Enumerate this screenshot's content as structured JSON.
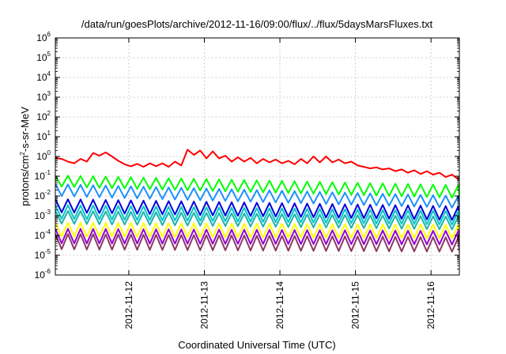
{
  "chart_data": {
    "type": "line",
    "title": "/data/run/goesPlots/archive/2012-11-16/09:00/flux/../flux/5daysMarsFluxes.txt",
    "xlabel": "Coordinated Universal Time (UTC)",
    "ylabel": {
      "base": "protons/cm",
      "sup": "2",
      "rest": "-s-sr-MeV"
    },
    "yscale": "log",
    "ylim_exponents": [
      -6,
      6
    ],
    "y_ticks": [
      {
        "base": "10",
        "exp": "-6"
      },
      {
        "base": "10",
        "exp": "-5"
      },
      {
        "base": "10",
        "exp": "-4"
      },
      {
        "base": "10",
        "exp": "-3"
      },
      {
        "base": "10",
        "exp": "-2"
      },
      {
        "base": "10",
        "exp": "-1"
      },
      {
        "base": "10",
        "exp": "0"
      },
      {
        "base": "10",
        "exp": "1"
      },
      {
        "base": "10",
        "exp": "2"
      },
      {
        "base": "10",
        "exp": "3"
      },
      {
        "base": "10",
        "exp": "4"
      },
      {
        "base": "10",
        "exp": "5"
      },
      {
        "base": "10",
        "exp": "6"
      }
    ],
    "x_range": [
      "2012-11-11 00:40",
      "2012-11-16 09:00"
    ],
    "x_ticks": [
      "2012-11-12",
      "2012-11-13",
      "2012-11-14",
      "2012-11-15",
      "2012-11-16"
    ],
    "grid": true,
    "legend": "none",
    "series": [
      {
        "color": "#ff0000",
        "points": [
          [
            "2012-11-11 00:40",
            0.85
          ],
          [
            "2012-11-11 02:40",
            0.75
          ],
          [
            "2012-11-11 04:40",
            0.55
          ],
          [
            "2012-11-11 06:40",
            0.45
          ],
          [
            "2012-11-11 08:40",
            0.75
          ],
          [
            "2012-11-11 10:40",
            0.55
          ],
          [
            "2012-11-11 12:40",
            1.5
          ],
          [
            "2012-11-11 14:40",
            1.1
          ],
          [
            "2012-11-11 16:40",
            1.6
          ],
          [
            "2012-11-11 18:40",
            1.0
          ],
          [
            "2012-11-11 20:40",
            0.6
          ],
          [
            "2012-11-11 22:40",
            0.4
          ],
          [
            "2012-11-12 00:40",
            0.32
          ],
          [
            "2012-11-12 02:40",
            0.42
          ],
          [
            "2012-11-12 04:40",
            0.3
          ],
          [
            "2012-11-12 06:40",
            0.45
          ],
          [
            "2012-11-12 08:40",
            0.32
          ],
          [
            "2012-11-12 10:40",
            0.45
          ],
          [
            "2012-11-12 12:40",
            0.3
          ],
          [
            "2012-11-12 14:40",
            0.55
          ],
          [
            "2012-11-12 16:40",
            0.35
          ],
          [
            "2012-11-12 18:40",
            2.2
          ],
          [
            "2012-11-12 20:40",
            1.2
          ],
          [
            "2012-11-12 22:40",
            2.0
          ],
          [
            "2012-11-13 00:40",
            0.8
          ],
          [
            "2012-11-13 02:40",
            1.8
          ],
          [
            "2012-11-13 04:40",
            0.8
          ],
          [
            "2012-11-13 06:40",
            1.1
          ],
          [
            "2012-11-13 08:40",
            0.55
          ],
          [
            "2012-11-13 10:40",
            0.9
          ],
          [
            "2012-11-13 12:40",
            0.55
          ],
          [
            "2012-11-13 14:40",
            0.85
          ],
          [
            "2012-11-13 16:40",
            0.45
          ],
          [
            "2012-11-13 18:40",
            0.75
          ],
          [
            "2012-11-13 20:40",
            0.5
          ],
          [
            "2012-11-13 22:40",
            0.7
          ],
          [
            "2012-11-14 00:40",
            0.45
          ],
          [
            "2012-11-14 02:40",
            0.6
          ],
          [
            "2012-11-14 04:40",
            0.4
          ],
          [
            "2012-11-14 06:40",
            0.75
          ],
          [
            "2012-11-14 08:40",
            0.45
          ],
          [
            "2012-11-14 10:40",
            1.0
          ],
          [
            "2012-11-14 12:40",
            0.5
          ],
          [
            "2012-11-14 14:40",
            1.0
          ],
          [
            "2012-11-14 16:40",
            0.5
          ],
          [
            "2012-11-14 18:40",
            0.7
          ],
          [
            "2012-11-14 20:40",
            0.45
          ],
          [
            "2012-11-14 22:40",
            0.55
          ],
          [
            "2012-11-15 00:40",
            0.35
          ],
          [
            "2012-11-15 02:40",
            0.3
          ],
          [
            "2012-11-15 04:40",
            0.25
          ],
          [
            "2012-11-15 06:40",
            0.28
          ],
          [
            "2012-11-15 08:40",
            0.22
          ],
          [
            "2012-11-15 10:40",
            0.25
          ],
          [
            "2012-11-15 12:40",
            0.18
          ],
          [
            "2012-11-15 14:40",
            0.22
          ],
          [
            "2012-11-15 16:40",
            0.15
          ],
          [
            "2012-11-15 18:40",
            0.2
          ],
          [
            "2012-11-15 20:40",
            0.13
          ],
          [
            "2012-11-15 22:40",
            0.18
          ],
          [
            "2012-11-16 00:40",
            0.12
          ],
          [
            "2012-11-16 02:40",
            0.15
          ],
          [
            "2012-11-16 04:40",
            0.09
          ],
          [
            "2012-11-16 06:40",
            0.12
          ],
          [
            "2012-11-16 08:40",
            0.07
          ],
          [
            "2012-11-16 09:00",
            0.08
          ]
        ]
      },
      {
        "color": "#00ff00",
        "high": [
          0.11,
          0.035
        ],
        "low": [
          0.03,
          0.008
        ]
      },
      {
        "color": "#1e90ff",
        "high": [
          0.04,
          0.01
        ],
        "low": [
          0.01,
          0.0025
        ]
      },
      {
        "color": "#0000dd",
        "high": [
          0.007,
          0.003
        ],
        "low": [
          0.0015,
          0.0006
        ]
      },
      {
        "color": "#00c8c8",
        "high": [
          0.0035,
          0.0017
        ],
        "low": [
          0.0007,
          0.00035
        ]
      },
      {
        "color": "#20b2aa",
        "high": [
          0.0018,
          0.0009
        ],
        "low": [
          0.0004,
          0.0002
        ]
      },
      {
        "color": "#ffff00",
        "high": [
          0.00045,
          0.00035
        ],
        "low": [
          9e-05,
          7e-05
        ]
      },
      {
        "color": "#9400d3",
        "high": [
          0.00022,
          0.00017
        ],
        "low": [
          4e-05,
          3.5e-05
        ]
      },
      {
        "color": "#8b3a62",
        "high": [
          0.00012,
          8e-05
        ],
        "low": [
          2e-05,
          1.5e-05
        ]
      }
    ],
    "sawtooth_period_hours": 2
  }
}
